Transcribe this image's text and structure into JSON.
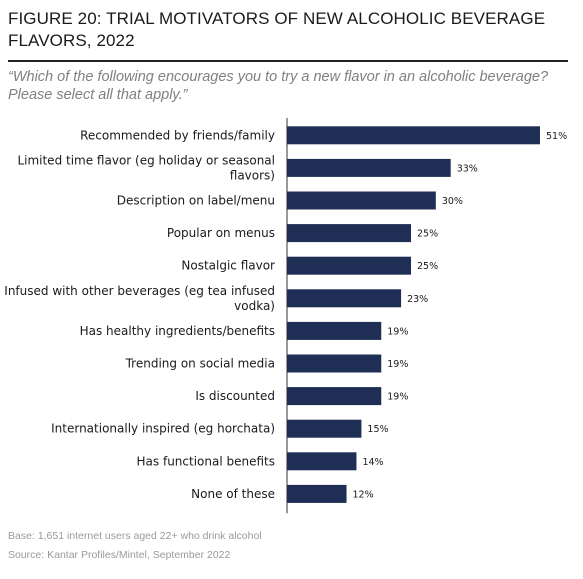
{
  "title": "FIGURE 20: TRIAL MOTIVATORS OF NEW ALCOHOLIC BEVERAGE FLAVORS, 2022",
  "question": "“Which of the following encourages you to try a new flavor in an alcoholic beverage? Please select all that apply.”",
  "base": "Base: 1,651 internet users aged 22+ who drink alcohol",
  "source": "Source: Kantar Profiles/Mintel, September 2022",
  "colors": {
    "bar": "#1f2e54",
    "axis": "#333333"
  },
  "chart_data": {
    "type": "bar",
    "orientation": "horizontal",
    "categories": [
      [
        "Recommended by friends/family"
      ],
      [
        "Limited time flavor (eg holiday or seasonal",
        "flavors)"
      ],
      [
        "Description on label/menu"
      ],
      [
        "Popular on menus"
      ],
      [
        "Nostalgic flavor"
      ],
      [
        "Infused with other beverages (eg tea infused",
        "vodka)"
      ],
      [
        "Has healthy ingredients/benefits"
      ],
      [
        "Trending on social media"
      ],
      [
        "Is discounted"
      ],
      [
        "Internationally inspired (eg horchata)"
      ],
      [
        "Has functional benefits"
      ],
      [
        "None of these"
      ]
    ],
    "values": [
      51,
      33,
      30,
      25,
      25,
      23,
      19,
      19,
      19,
      15,
      14,
      12
    ],
    "value_labels": [
      "51%",
      "33%",
      "30%",
      "25%",
      "25%",
      "23%",
      "19%",
      "19%",
      "19%",
      "15%",
      "14%",
      "12%"
    ],
    "xlim": [
      0,
      51
    ],
    "grid": false,
    "legend": "none"
  }
}
